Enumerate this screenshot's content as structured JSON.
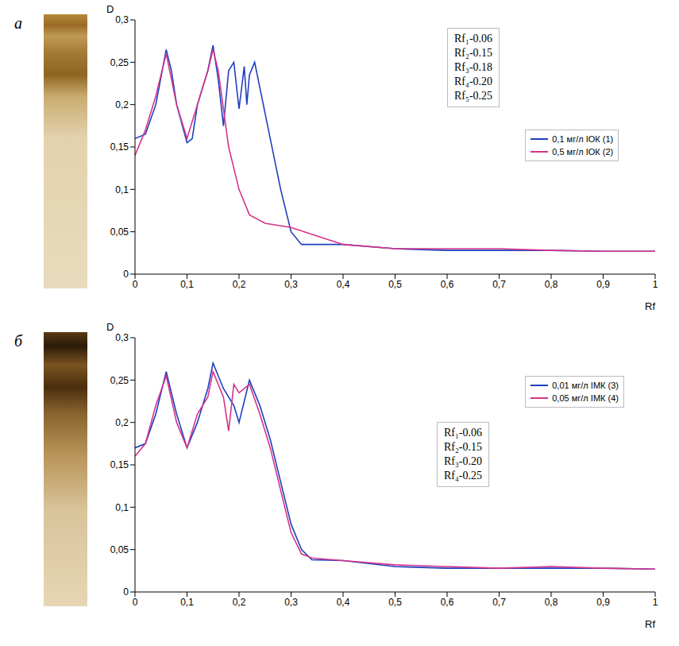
{
  "chart_data": [
    {
      "type": "line",
      "panel": "a",
      "x_label": "Rf",
      "y_label": "D",
      "annotations": [
        "Rf₁-0.06",
        "Rf₂-0.15",
        "Rf₃-0.18",
        "Rf₄-0.20",
        "Rf₅-0.25"
      ],
      "xlim": [
        0,
        1
      ],
      "ylim": [
        0,
        0.3
      ],
      "xticks": [
        0,
        {
          "value": 0.1,
          "label": "0,1"
        },
        {
          "value": 0.2,
          "label": "0,2"
        },
        {
          "value": 0.3,
          "label": "0,3"
        },
        {
          "value": 0.4,
          "label": "0,4"
        },
        {
          "value": 0.5,
          "label": "0,5"
        },
        {
          "value": 0.6,
          "label": "0,6"
        },
        {
          "value": 0.7,
          "label": "0,7"
        },
        {
          "value": 0.8,
          "label": "0,8"
        },
        {
          "value": 0.9,
          "label": "0,9"
        },
        1
      ],
      "yticks": [
        0,
        {
          "value": 0.05,
          "label": "0,05"
        },
        {
          "value": 0.1,
          "label": "0,1"
        },
        {
          "value": 0.15,
          "label": "0,15"
        },
        {
          "value": 0.2,
          "label": "0,2"
        },
        {
          "value": 0.25,
          "label": "0,25"
        },
        {
          "value": 0.3,
          "label": "0,3"
        }
      ],
      "grid": false,
      "legend": "upper right",
      "series": [
        {
          "name": "0,1 мг/л ІОК (1)",
          "color": "#1f3fbf",
          "x": [
            0,
            0.02,
            0.04,
            0.06,
            0.07,
            0.08,
            0.1,
            0.11,
            0.12,
            0.14,
            0.15,
            0.16,
            0.17,
            0.18,
            0.19,
            0.2,
            0.21,
            0.215,
            0.22,
            0.23,
            0.24,
            0.26,
            0.28,
            0.3,
            0.32,
            0.4,
            0.5,
            0.6,
            0.7,
            0.8,
            0.9,
            1
          ],
          "values": [
            0.16,
            0.165,
            0.2,
            0.265,
            0.24,
            0.2,
            0.155,
            0.16,
            0.2,
            0.24,
            0.27,
            0.23,
            0.175,
            0.24,
            0.25,
            0.195,
            0.245,
            0.2,
            0.235,
            0.25,
            0.22,
            0.16,
            0.1,
            0.05,
            0.035,
            0.035,
            0.03,
            0.028,
            0.028,
            0.028,
            0.027,
            0.027
          ]
        },
        {
          "name": "0,5 мг/л ІОК (2)",
          "color": "#d6338a",
          "x": [
            0,
            0.02,
            0.04,
            0.06,
            0.08,
            0.1,
            0.12,
            0.14,
            0.15,
            0.16,
            0.18,
            0.2,
            0.22,
            0.25,
            0.3,
            0.35,
            0.4,
            0.5,
            0.6,
            0.7,
            0.8,
            0.9,
            1
          ],
          "values": [
            0.14,
            0.17,
            0.21,
            0.26,
            0.2,
            0.16,
            0.2,
            0.24,
            0.265,
            0.24,
            0.15,
            0.1,
            0.07,
            0.06,
            0.055,
            0.045,
            0.035,
            0.03,
            0.03,
            0.03,
            0.028,
            0.027,
            0.027
          ]
        }
      ]
    },
    {
      "type": "line",
      "panel": "б",
      "x_label": "Rf",
      "y_label": "D",
      "annotations": [
        "Rf₁-0.06",
        "Rf₂-0.15",
        "Rf₃-0.20",
        "Rf₄-0.25"
      ],
      "xlim": [
        0,
        1
      ],
      "ylim": [
        0,
        0.3
      ],
      "xticks": [
        0,
        {
          "value": 0.1,
          "label": "0,1"
        },
        {
          "value": 0.2,
          "label": "0,2"
        },
        {
          "value": 0.3,
          "label": "0,3"
        },
        {
          "value": 0.4,
          "label": "0,4"
        },
        {
          "value": 0.5,
          "label": "0,5"
        },
        {
          "value": 0.6,
          "label": "0,6"
        },
        {
          "value": 0.7,
          "label": "0,7"
        },
        {
          "value": 0.8,
          "label": "0,8"
        },
        {
          "value": 0.9,
          "label": "0,9"
        },
        1
      ],
      "yticks": [
        0,
        {
          "value": 0.05,
          "label": "0,05"
        },
        {
          "value": 0.1,
          "label": "0,1"
        },
        {
          "value": 0.15,
          "label": "0,15"
        },
        {
          "value": 0.2,
          "label": "0,2"
        },
        {
          "value": 0.25,
          "label": "0,25"
        },
        {
          "value": 0.3,
          "label": "0,3"
        }
      ],
      "grid": false,
      "legend": "right",
      "series": [
        {
          "name": "0,01 мг/л ІМК (3)",
          "color": "#1f3fbf",
          "x": [
            0,
            0.02,
            0.04,
            0.06,
            0.08,
            0.1,
            0.12,
            0.14,
            0.15,
            0.17,
            0.19,
            0.2,
            0.22,
            0.24,
            0.26,
            0.28,
            0.3,
            0.32,
            0.34,
            0.4,
            0.5,
            0.6,
            0.7,
            0.8,
            0.9,
            1
          ],
          "values": [
            0.17,
            0.175,
            0.21,
            0.26,
            0.21,
            0.17,
            0.2,
            0.24,
            0.27,
            0.24,
            0.22,
            0.2,
            0.25,
            0.22,
            0.18,
            0.13,
            0.08,
            0.05,
            0.038,
            0.037,
            0.03,
            0.028,
            0.028,
            0.028,
            0.028,
            0.027
          ]
        },
        {
          "name": "0,05 мг/л ІМК (4)",
          "color": "#d6338a",
          "x": [
            0,
            0.02,
            0.04,
            0.06,
            0.08,
            0.1,
            0.12,
            0.14,
            0.15,
            0.17,
            0.18,
            0.19,
            0.2,
            0.22,
            0.24,
            0.26,
            0.28,
            0.3,
            0.32,
            0.34,
            0.4,
            0.5,
            0.6,
            0.7,
            0.8,
            0.9,
            1
          ],
          "values": [
            0.16,
            0.175,
            0.22,
            0.255,
            0.2,
            0.17,
            0.21,
            0.23,
            0.26,
            0.23,
            0.19,
            0.245,
            0.235,
            0.245,
            0.21,
            0.17,
            0.12,
            0.07,
            0.045,
            0.04,
            0.037,
            0.032,
            0.03,
            0.028,
            0.03,
            0.028,
            0.027
          ]
        }
      ]
    }
  ]
}
